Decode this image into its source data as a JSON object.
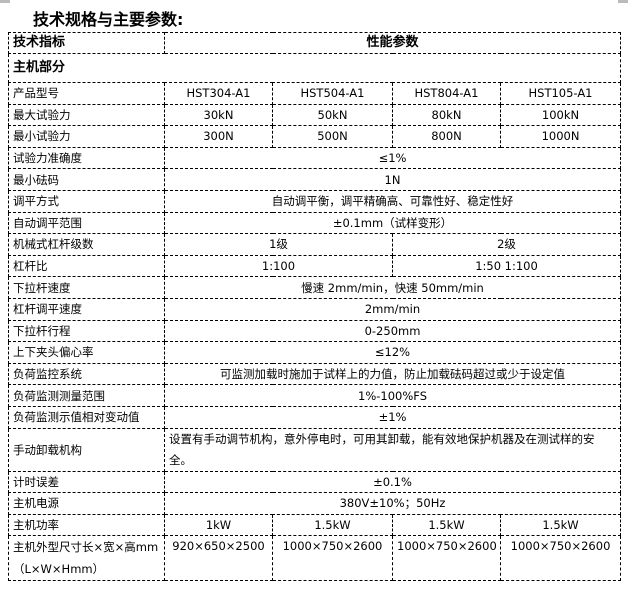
{
  "title": "技术规格与主要参数:",
  "header": {
    "col1": "技术指标",
    "col2": "性能参数"
  },
  "section": "主机部分",
  "rows": [
    {
      "label": "产品型号",
      "cells": [
        {
          "text": "HST304-A1",
          "span": 1
        },
        {
          "text": "HST504-A1",
          "span": 1
        },
        {
          "text": "HST804-A1",
          "span": 1
        },
        {
          "text": "HST105-A1",
          "span": 1
        }
      ]
    },
    {
      "label": "最大试验力",
      "cells": [
        {
          "text": "30kN",
          "span": 1
        },
        {
          "text": "50kN",
          "span": 1
        },
        {
          "text": "80kN",
          "span": 1
        },
        {
          "text": "100kN",
          "span": 1
        }
      ]
    },
    {
      "label": "最小试验力",
      "cells": [
        {
          "text": "300N",
          "span": 1
        },
        {
          "text": "500N",
          "span": 1
        },
        {
          "text": "800N",
          "span": 1
        },
        {
          "text": "1000N",
          "span": 1
        }
      ]
    },
    {
      "label": "试验力准确度",
      "cells": [
        {
          "text": "≤1%",
          "span": 4
        }
      ]
    },
    {
      "label": "最小砝码",
      "cells": [
        {
          "text": "1N",
          "span": 4
        }
      ]
    },
    {
      "label": "调平方式",
      "cells": [
        {
          "text": "自动调平衡，调平精确高、可靠性好、稳定性好",
          "span": 4
        }
      ]
    },
    {
      "label": "自动调平范围",
      "cells": [
        {
          "text": "±0.1mm（试样变形）",
          "span": 4
        }
      ]
    },
    {
      "label": "机械式杠杆级数",
      "cells": [
        {
          "text": "1级",
          "span": 2
        },
        {
          "text": "2级",
          "span": 2
        }
      ]
    },
    {
      "label": "杠杆比",
      "cells": [
        {
          "text": "1:100",
          "span": 2
        },
        {
          "text": "1:50    1:100",
          "span": 2
        }
      ]
    },
    {
      "label": "下拉杆速度",
      "cells": [
        {
          "text": "慢速 2mm/min，快速 50mm/min",
          "span": 4
        }
      ]
    },
    {
      "label": "杠杆调平速度",
      "cells": [
        {
          "text": "2mm/min",
          "span": 4
        }
      ]
    },
    {
      "label": "下拉杆行程",
      "cells": [
        {
          "text": "0-250mm",
          "span": 4
        }
      ]
    },
    {
      "label": "上下夹头偏心率",
      "cells": [
        {
          "text": "≤12%",
          "span": 4
        }
      ]
    },
    {
      "label": "负荷监控系统",
      "cells": [
        {
          "text": "可监测加载时施加于试样上的力值，防止加载砝码超过或少于设定值",
          "span": 4
        }
      ]
    },
    {
      "label": "负荷监测测量范围",
      "cells": [
        {
          "text": "1%-100%FS",
          "span": 4
        }
      ]
    },
    {
      "label": "负荷监测示值相对变动值",
      "cells": [
        {
          "text": "±1%",
          "span": 4
        }
      ]
    },
    {
      "label": "手动卸载机构",
      "tall": true,
      "cells": [
        {
          "text": "设置有手动调节机构，意外停电时，可用其卸载，能有效地保护机器及在测试样的安全。",
          "span": 4,
          "wrap": true
        }
      ]
    },
    {
      "label": "计时误差",
      "cells": [
        {
          "text": "±0.1%",
          "span": 4
        }
      ]
    },
    {
      "label": "主机电源",
      "cells": [
        {
          "text": "380V±10%；50Hz",
          "span": 4
        }
      ]
    },
    {
      "label": "主机功率",
      "cells": [
        {
          "text": "1kW",
          "span": 1
        },
        {
          "text": "1.5kW",
          "span": 1
        },
        {
          "text": "1.5kW",
          "span": 1
        },
        {
          "text": "1.5kW",
          "span": 1
        }
      ]
    },
    {
      "label": "主机外型尺寸长×宽×高mm（L×W×Hmm）",
      "last": true,
      "cells": [
        {
          "text": "920×650×2500",
          "span": 1
        },
        {
          "text": "1000×750×2600",
          "span": 1
        },
        {
          "text": "1000×750×2600",
          "span": 1
        },
        {
          "text": "1000×750×2600",
          "span": 1
        }
      ]
    }
  ]
}
